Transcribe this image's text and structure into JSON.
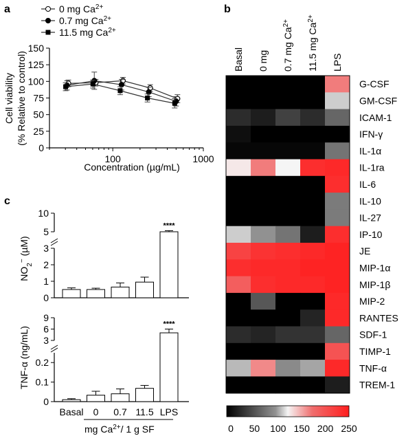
{
  "panels": {
    "a": "a",
    "b": "b",
    "c": "c"
  },
  "chart_data": [
    {
      "id": "a",
      "type": "line",
      "xscale": "log",
      "xlabel": "Concentration (µg/mL)",
      "ylabel_line1": "Cell viability",
      "ylabel_line2": "(% Relative to control)",
      "xticks": [
        100,
        1000
      ],
      "xtick_labels": [
        "100",
        "1000"
      ],
      "xlim": [
        20,
        1000
      ],
      "ylim": [
        0,
        150
      ],
      "yticks": [
        0,
        25,
        50,
        75,
        100,
        125,
        150
      ],
      "legend_position": "top-left",
      "x": [
        31.25,
        62.5,
        125,
        250,
        500
      ],
      "series": [
        {
          "name": "0 mg Ca2+",
          "marker": "open-circle",
          "values": [
            97,
            98,
            101,
            90,
            74
          ],
          "err": [
            5,
            5,
            5,
            5,
            6
          ]
        },
        {
          "name": "0.7 mg Ca2+",
          "marker": "filled-circle",
          "values": [
            94,
            101,
            95,
            84,
            70
          ],
          "err": [
            7,
            13,
            8,
            7,
            7
          ]
        },
        {
          "name": "11.5 mg Ca2+",
          "marker": "filled-square",
          "values": [
            92,
            96,
            86,
            75,
            67
          ],
          "err": [
            6,
            6,
            6,
            6,
            7
          ]
        }
      ]
    },
    {
      "id": "b",
      "type": "heatmap",
      "columns": [
        "Basal",
        "0 mg",
        "0.7 mg Ca2+",
        "11.5 mg Ca2+",
        "LPS"
      ],
      "rows": [
        "G-CSF",
        "GM-CSF",
        "ICAM-1",
        "IFN-γ",
        "IL-1α",
        "IL-1ra",
        "IL-6",
        "IL-10",
        "IL-27",
        "IP-10",
        "JE",
        "MIP-1α",
        "MIP-1β",
        "MIP-2",
        "RANTES",
        "SDF-1",
        "TIMP-1",
        "TNF-α",
        "TREM-1"
      ],
      "values": [
        [
          0,
          0,
          0,
          0,
          170
        ],
        [
          0,
          0,
          0,
          0,
          115
        ],
        [
          30,
          20,
          45,
          30,
          70
        ],
        [
          10,
          0,
          0,
          0,
          0
        ],
        [
          5,
          5,
          5,
          5,
          80
        ],
        [
          130,
          170,
          125,
          235,
          240
        ],
        [
          0,
          0,
          0,
          0,
          235
        ],
        [
          0,
          0,
          0,
          0,
          85
        ],
        [
          0,
          0,
          0,
          0,
          85
        ],
        [
          115,
          100,
          80,
          20,
          235
        ],
        [
          215,
          230,
          235,
          240,
          245
        ],
        [
          235,
          240,
          240,
          245,
          245
        ],
        [
          190,
          235,
          240,
          240,
          245
        ],
        [
          0,
          60,
          0,
          0,
          240
        ],
        [
          0,
          0,
          0,
          25,
          240
        ],
        [
          30,
          25,
          35,
          35,
          70
        ],
        [
          0,
          0,
          0,
          0,
          200
        ],
        [
          110,
          165,
          95,
          105,
          240
        ],
        [
          0,
          0,
          0,
          0,
          20
        ]
      ],
      "colorbar_ticks": [
        0,
        50,
        100,
        150,
        200,
        250
      ],
      "colorbar_range": [
        0,
        250
      ]
    },
    {
      "id": "c-top",
      "type": "bar",
      "ylabel": "NO2− (µM)",
      "categories": [
        "Basal",
        "0",
        "0.7",
        "11.5",
        "LPS"
      ],
      "values": [
        0.5,
        0.5,
        0.65,
        0.95,
        4.9
      ],
      "err": [
        0.1,
        0.08,
        0.25,
        0.3,
        0.4
      ],
      "significance": [
        "",
        "",
        "",
        "",
        "****"
      ],
      "yticks": [
        0,
        1,
        2,
        3,
        5,
        10
      ],
      "axis_break_between": [
        3,
        5
      ]
    },
    {
      "id": "c-bottom",
      "type": "bar",
      "ylabel": "TNF-α (ng/mL)",
      "categories": [
        "Basal",
        "0",
        "0.7",
        "11.5",
        "LPS"
      ],
      "values": [
        0.01,
        0.033,
        0.04,
        0.068,
        5.0
      ],
      "err": [
        0.005,
        0.02,
        0.025,
        0.015,
        1.0
      ],
      "significance": [
        "",
        "",
        "",
        "",
        "****"
      ],
      "yticks": [
        0.0,
        0.1,
        0.2,
        3,
        6,
        9
      ],
      "axis_break_between": [
        0.25,
        3
      ],
      "xlabel": "mg Ca2+/ 1 g SF"
    }
  ]
}
